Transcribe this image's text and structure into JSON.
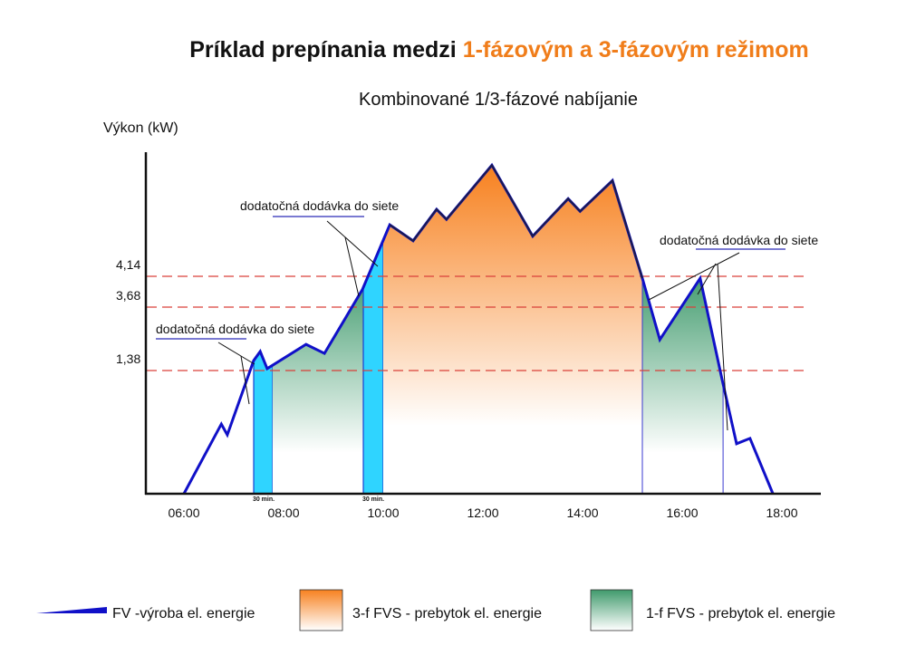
{
  "title": {
    "part1": "Príklad prepínania medzi ",
    "part2": "1-fázovým a 3-fázovým režimom"
  },
  "subtitle": "Kombinované 1/3-fázové nabíjanie",
  "colors": {
    "accent": "#f07d1a",
    "fv_line": "#1010c8",
    "orange": "#f7811f",
    "green": "#3f9a6c",
    "cyan": "#2fd4ff",
    "threshold": "#d9403a"
  },
  "annotations": {
    "callout_1": "dodatočná dodávka do siete",
    "callout_2": "dodatočná dodávka do siete",
    "callout_3": "dodatočná dodávka do siete",
    "bar_label_1": "30 min.",
    "bar_label_2": "30 min."
  },
  "legend": [
    {
      "label": "FV -výroba el. energie",
      "icon": "blue-line"
    },
    {
      "label": "3-f FVS - prebytok el. energie",
      "icon": "orange-gradient-square"
    },
    {
      "label": "1-f FVS - prebytok el. energie",
      "icon": "green-gradient-square"
    }
  ],
  "chart_data": {
    "type": "area",
    "title": "Kombinované 1/3-fázové nabíjanie",
    "ylabel": "Výkon (kW)",
    "xlabel": "",
    "x_ticks": [
      "06:00",
      "08:00",
      "10:00",
      "12:00",
      "14:00",
      "16:00",
      "18:00"
    ],
    "y_ticks": [
      "1,38",
      "3,68",
      "4,14"
    ],
    "thresholds": [
      1.38,
      3.68,
      4.14
    ],
    "series": [
      {
        "name": "FV -výroba el. energie",
        "x": [
          6.0,
          6.75,
          6.87,
          7.4,
          7.53,
          7.67,
          8.45,
          8.82,
          9.58,
          10.13,
          10.6,
          11.07,
          11.27,
          12.18,
          13.0,
          13.71,
          13.95,
          14.6,
          15.2,
          15.55,
          16.36,
          16.8,
          17.09,
          17.36,
          17.82
        ],
        "y": [
          0,
          0.78,
          0.66,
          1.74,
          2.07,
          1.45,
          2.33,
          2.0,
          3.94,
          4.91,
          4.67,
          5.14,
          4.99,
          5.8,
          4.74,
          5.3,
          5.11,
          5.57,
          4.11,
          2.5,
          4.11,
          1.28,
          0.56,
          0.62,
          0
        ]
      }
    ],
    "regions": [
      {
        "name": "dodatočná dodávka do siete (30 min.)",
        "type": "grid-feed",
        "x": [
          7.4,
          7.78
        ]
      },
      {
        "name": "1-f FVS - prebytok el. energie",
        "type": "1f",
        "x": [
          7.78,
          9.6
        ]
      },
      {
        "name": "dodatočná dodávka do siete (30 min.)",
        "type": "grid-feed",
        "x": [
          9.6,
          10.0
        ]
      },
      {
        "name": "3-f FVS - prebytok el. energie",
        "type": "3f",
        "x": [
          10.0,
          15.2
        ]
      },
      {
        "name": "1-f FVS - prebytok el. energie",
        "type": "1f",
        "x": [
          15.2,
          16.82
        ]
      }
    ]
  }
}
